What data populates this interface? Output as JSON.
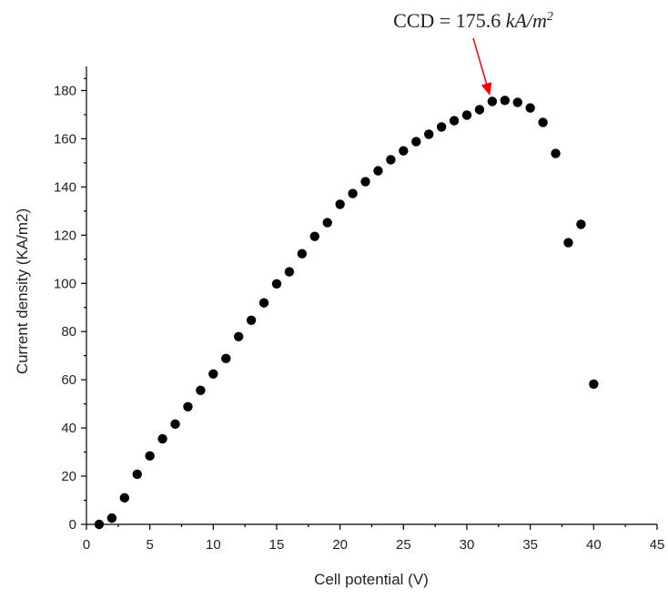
{
  "chart_data": {
    "type": "scatter",
    "x_label": "Cell potential (V)",
    "y_label": "Current density (KA/m2)",
    "annotation": {
      "text": "CCD = 175.6",
      "unit": "kA/m",
      "unit_power": "2",
      "color": "#ff0000"
    },
    "x": [
      1,
      2,
      3,
      4,
      5,
      6,
      7,
      8,
      9,
      10,
      11,
      12,
      13,
      14,
      15,
      16,
      17,
      18,
      19,
      20,
      21,
      22,
      23,
      24,
      25,
      26,
      27,
      28,
      29,
      30,
      31,
      32,
      33,
      34,
      35,
      36,
      37,
      38,
      39,
      40
    ],
    "values": [
      0,
      2.6,
      11,
      20.8,
      28.4,
      35.5,
      41.6,
      48.8,
      55.6,
      62.4,
      68.8,
      77.9,
      84.7,
      91.9,
      99.8,
      104.8,
      112.3,
      119.5,
      125.2,
      132.8,
      137.3,
      142.2,
      146.7,
      151.3,
      155,
      158.8,
      161.9,
      164.9,
      167.5,
      169.8,
      172.1,
      175.5,
      175.9,
      175.1,
      172.8,
      166.8,
      153.9,
      116.9,
      124.5,
      58.2
    ],
    "color": "#000000",
    "xlim": [
      0,
      45
    ],
    "xticks": [
      0,
      5,
      10,
      15,
      20,
      25,
      30,
      35,
      40,
      45
    ],
    "ylim": [
      0,
      190
    ],
    "yticks": [
      0,
      20,
      40,
      60,
      80,
      100,
      120,
      140,
      160,
      180
    ]
  }
}
